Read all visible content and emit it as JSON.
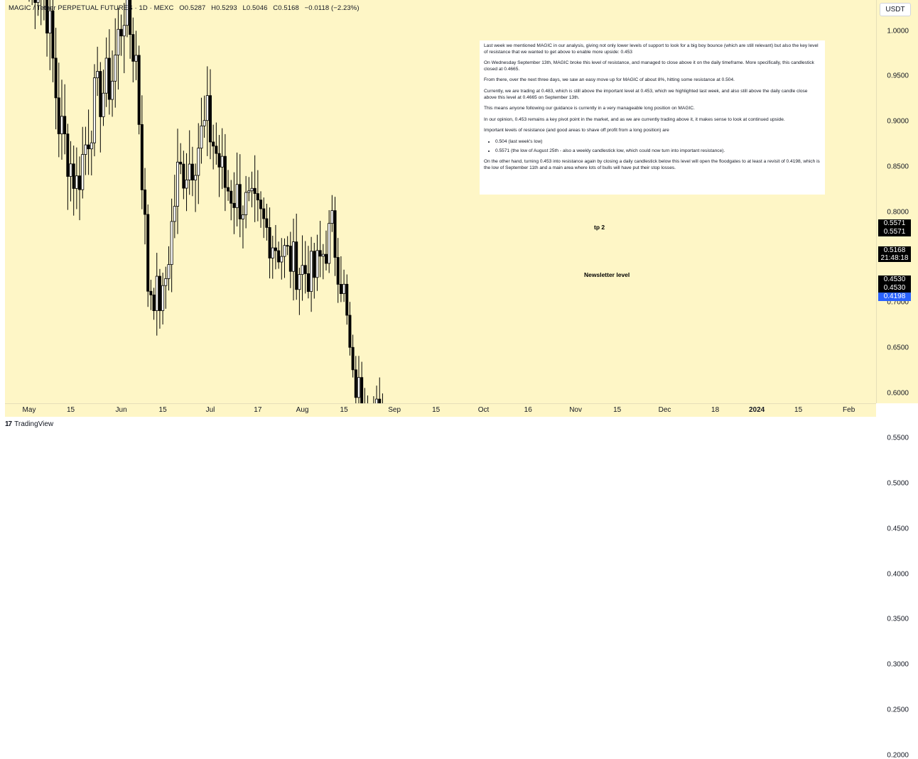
{
  "header": {
    "symbol": "MAGIC / Tether PERPETUAL FUTURES · 1D · MEXC",
    "open": "O0.5287",
    "high": "H0.5293",
    "low": "L0.5046",
    "close": "C0.5168",
    "change": "−0.0118 (−2.23%)"
  },
  "currency_button": "USDT",
  "price_tags": {
    "tp2_a": "0.5571",
    "tp2_b": "0.5571",
    "last_price": "0.5168",
    "countdown": "21:48:18",
    "support_a": "0.4530",
    "support_b": "0.4530",
    "low": "0.4198"
  },
  "levels": {
    "tp2_label": "tp 2",
    "newsletter_label": "Newsletter level"
  },
  "note": {
    "p1": "Last week we mentioned MAGIC in our analysis, giving not only lower levels of support to look for a big boy bounce (which are still relevant) but also the key level of resistance that we wanted to get above to enable more upside: 0.453",
    "p2": "On Wednesday September 13th, MAGIC broke this level of resistance, and managed to close above it on the daily timeframe. More specifically, this candlestick closed at 0.4665.",
    "p3": "From there, over the next three days, we saw an easy move up for MAGIC of about 8%, hitting some resistance at 0.504.",
    "p4": "Currently, we are trading at 0.483, which is still above the important level at 0.453, which we highlighted last week, and also still above the daily candle close above this level at 0.4665 on September 13th.",
    "p5": "This means anyone following our guidance is currently in a very manageable long position on MAGIC.",
    "p6": "In our opinion, 0.453 remains a key pivot point in the market, and as we are currently trading above it, it makes sense to look at continued upside.",
    "p7": "Important levels of resistance (and good areas to shave off profit from a long position) are",
    "bullets": [
      "0.504 (last week's low)",
      "0.5571 (the low of August 25th - also a weekly candlestick low, which could now turn into important resistance)."
    ],
    "p8": "On the other hand, turning 0.453 into resistance again by closing a daily candlestick below this level will open the floodgates to at least a revisit of 0.4198, which is the low of September 11th and a main area where lots of bulls will have put their stop losses."
  },
  "footer": {
    "logo": "17",
    "brand": "TradingView"
  },
  "colors": {
    "background": "#fef6c6",
    "bull_candle": "#ffffff",
    "bear_candle": "#000000",
    "support_line": "#2962ff"
  },
  "chart_data": {
    "type": "candlestick",
    "timeframe": "1D",
    "y_ticks": [
      "1.0000",
      "0.9500",
      "0.9000",
      "0.8500",
      "0.8000",
      "0.7500",
      "0.7000",
      "0.6500",
      "0.6000",
      "0.5500",
      "0.5000",
      "0.4500",
      "0.4000",
      "0.3500",
      "0.3000",
      "0.2500",
      "0.2000"
    ],
    "x_ticks": [
      {
        "label": "May",
        "day": 0
      },
      {
        "label": "15",
        "day": 14
      },
      {
        "label": "Jun",
        "day": 31
      },
      {
        "label": "15",
        "day": 45
      },
      {
        "label": "Jul",
        "day": 61
      },
      {
        "label": "17",
        "day": 77
      },
      {
        "label": "Aug",
        "day": 92
      },
      {
        "label": "15",
        "day": 106
      },
      {
        "label": "Sep",
        "day": 123
      },
      {
        "label": "15",
        "day": 137
      },
      {
        "label": "Oct",
        "day": 153
      },
      {
        "label": "16",
        "day": 168
      },
      {
        "label": "Nov",
        "day": 184
      },
      {
        "label": "15",
        "day": 198
      },
      {
        "label": "Dec",
        "day": 214
      },
      {
        "label": "18",
        "day": 231
      },
      {
        "label": "2024",
        "day": 245,
        "bold": true
      },
      {
        "label": "15",
        "day": 259
      },
      {
        "label": "Feb",
        "day": 276
      }
    ],
    "horizontal_levels": [
      {
        "name": "tp 2",
        "value": 0.5571,
        "from_day": 120,
        "to_day": 166
      },
      {
        "name": "Newsletter level",
        "value": 0.453,
        "from_day": 102,
        "to_day": 196
      },
      {
        "name": "low",
        "value": 0.4198,
        "from_day": 131,
        "to_day": 290
      }
    ],
    "key_points": [
      {
        "day": 5,
        "value": 1.06
      },
      {
        "day": 10,
        "value": 0.9
      },
      {
        "day": 16,
        "value": 0.83
      },
      {
        "day": 22,
        "value": 0.92
      },
      {
        "day": 28,
        "value": 0.95
      },
      {
        "day": 32,
        "value": 1.03
      },
      {
        "day": 36,
        "value": 0.97
      },
      {
        "day": 40,
        "value": 0.72
      },
      {
        "day": 45,
        "value": 0.7
      },
      {
        "day": 50,
        "value": 0.84
      },
      {
        "day": 55,
        "value": 0.86
      },
      {
        "day": 60,
        "value": 0.9
      },
      {
        "day": 66,
        "value": 0.83
      },
      {
        "day": 72,
        "value": 0.81
      },
      {
        "day": 78,
        "value": 0.79
      },
      {
        "day": 84,
        "value": 0.76
      },
      {
        "day": 90,
        "value": 0.74
      },
      {
        "day": 96,
        "value": 0.73
      },
      {
        "day": 102,
        "value": 0.78
      },
      {
        "day": 106,
        "value": 0.71
      },
      {
        "day": 109,
        "value": 0.61
      },
      {
        "day": 112,
        "value": 0.6
      },
      {
        "day": 117,
        "value": 0.58
      },
      {
        "day": 122,
        "value": 0.53
      },
      {
        "day": 126,
        "value": 0.5
      },
      {
        "day": 130,
        "value": 0.49
      },
      {
        "day": 133,
        "value": 0.43
      },
      {
        "day": 136,
        "value": 0.47
      },
      {
        "day": 140,
        "value": 0.49
      },
      {
        "day": 145,
        "value": 0.46
      },
      {
        "day": 148,
        "value": 0.48
      },
      {
        "day": 151,
        "value": 0.55
      },
      {
        "day": 152,
        "value": 0.57
      },
      {
        "day": 154,
        "value": 0.52
      }
    ]
  }
}
